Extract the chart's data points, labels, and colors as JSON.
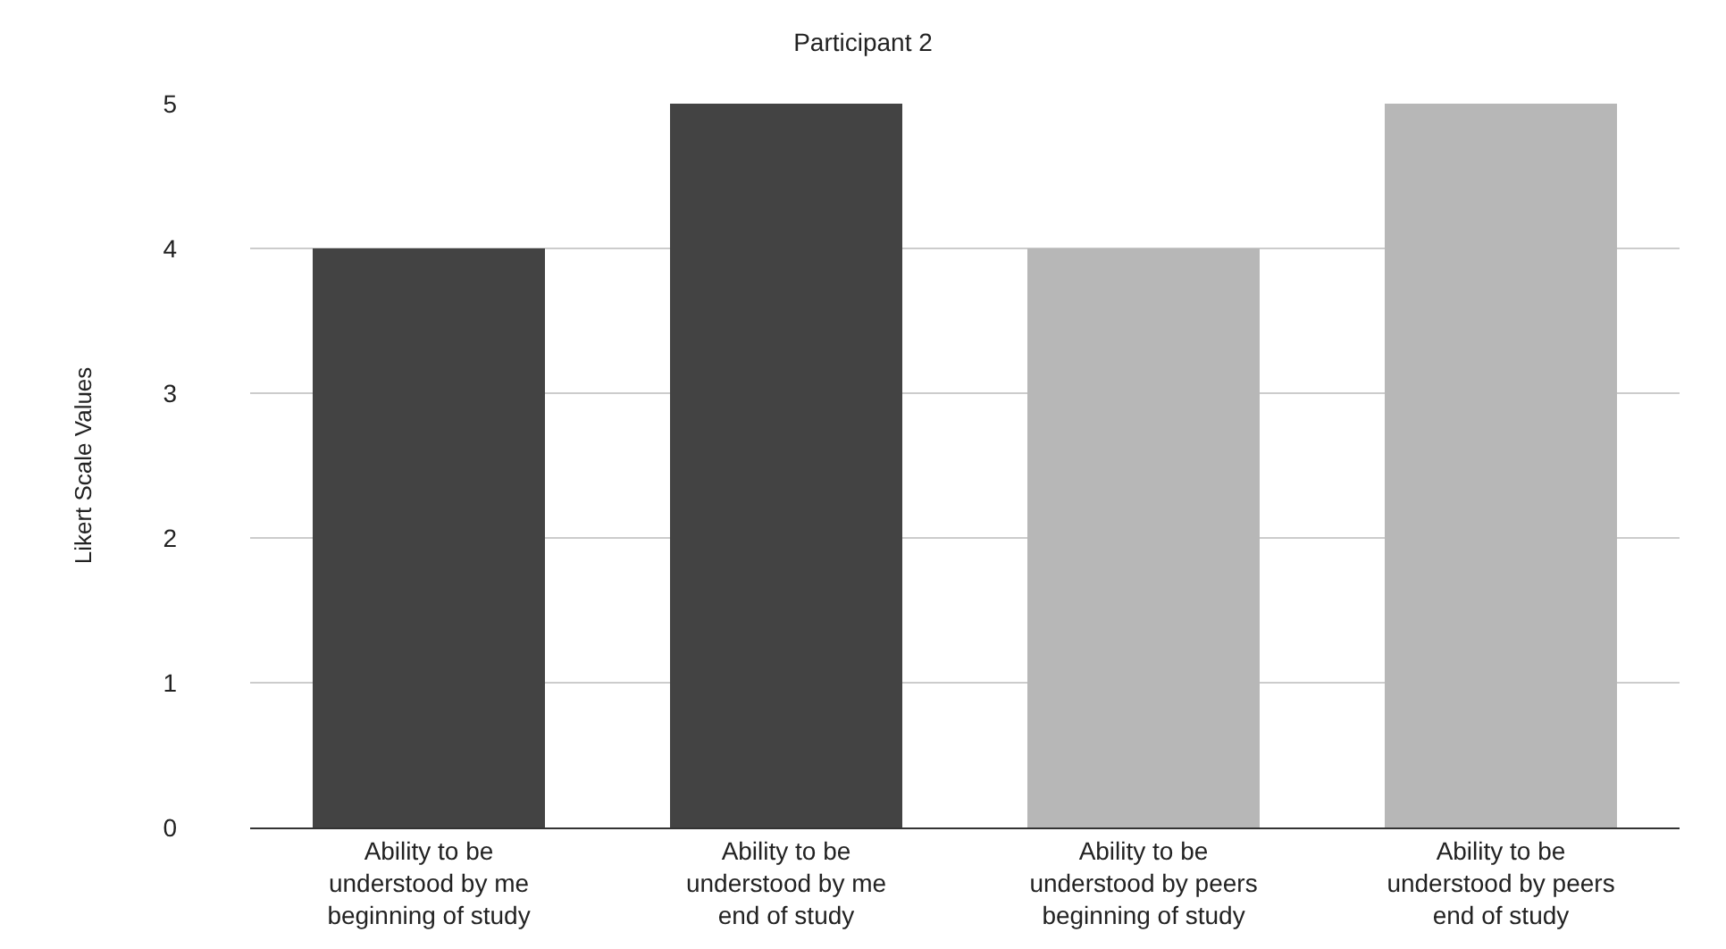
{
  "chart_data": {
    "type": "bar",
    "title": "Participant 2",
    "ylabel": "Likert Scale Values",
    "categories": [
      "Ability to be understood by me beginning of study",
      "Ability to be understood by me end of study",
      "Ability to be understood by peers beginning of study",
      "Ability to be understood by peers end of study"
    ],
    "values": [
      4,
      5,
      4,
      5
    ],
    "colors": [
      "#434343",
      "#434343",
      "#b7b7b7",
      "#b7b7b7"
    ],
    "ylim": [
      0,
      5
    ],
    "yticks": [
      0,
      1,
      2,
      3,
      4,
      5
    ],
    "grid": "y"
  }
}
